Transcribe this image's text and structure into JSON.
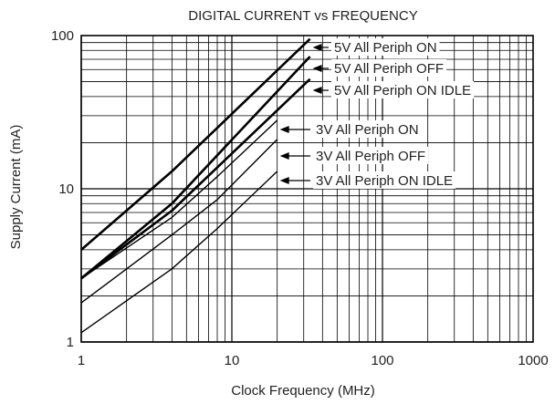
{
  "chart_data": {
    "type": "line",
    "title": "DIGITAL CURRENT vs FREQUENCY",
    "xlabel": "Clock Frequency (MHz)",
    "ylabel": "Supply Current (mA)",
    "x_scale": "log",
    "y_scale": "log",
    "xlim": [
      1,
      1000
    ],
    "ylim": [
      1,
      100
    ],
    "x_ticks": [
      "1",
      "10",
      "100",
      "1000"
    ],
    "y_ticks": [
      "1",
      "10",
      "100"
    ],
    "grid": true,
    "series": [
      {
        "name": "5V All Periph ON",
        "points": [
          [
            1,
            4.0
          ],
          [
            4,
            13.0
          ],
          [
            33,
            95.0
          ]
        ]
      },
      {
        "name": "5V All Periph OFF",
        "points": [
          [
            1,
            2.6
          ],
          [
            4,
            8.0
          ],
          [
            33,
            73.0
          ]
        ]
      },
      {
        "name": "5V All Periph ON IDLE",
        "points": [
          [
            1,
            2.6
          ],
          [
            4,
            7.2
          ],
          [
            33,
            52.0
          ]
        ]
      },
      {
        "name": "3V All Periph ON",
        "points": [
          [
            1,
            2.6
          ],
          [
            4,
            6.5
          ],
          [
            8,
            12.0
          ],
          [
            20,
            28.0
          ]
        ]
      },
      {
        "name": "3V All Periph OFF",
        "points": [
          [
            1,
            1.8
          ],
          [
            4,
            5.0
          ],
          [
            8,
            8.5
          ],
          [
            20,
            21.0
          ]
        ]
      },
      {
        "name": "3V All Periph ON IDLE",
        "points": [
          [
            1,
            1.15
          ],
          [
            4,
            3.0
          ],
          [
            8,
            5.5
          ],
          [
            20,
            13.0
          ]
        ]
      }
    ]
  }
}
